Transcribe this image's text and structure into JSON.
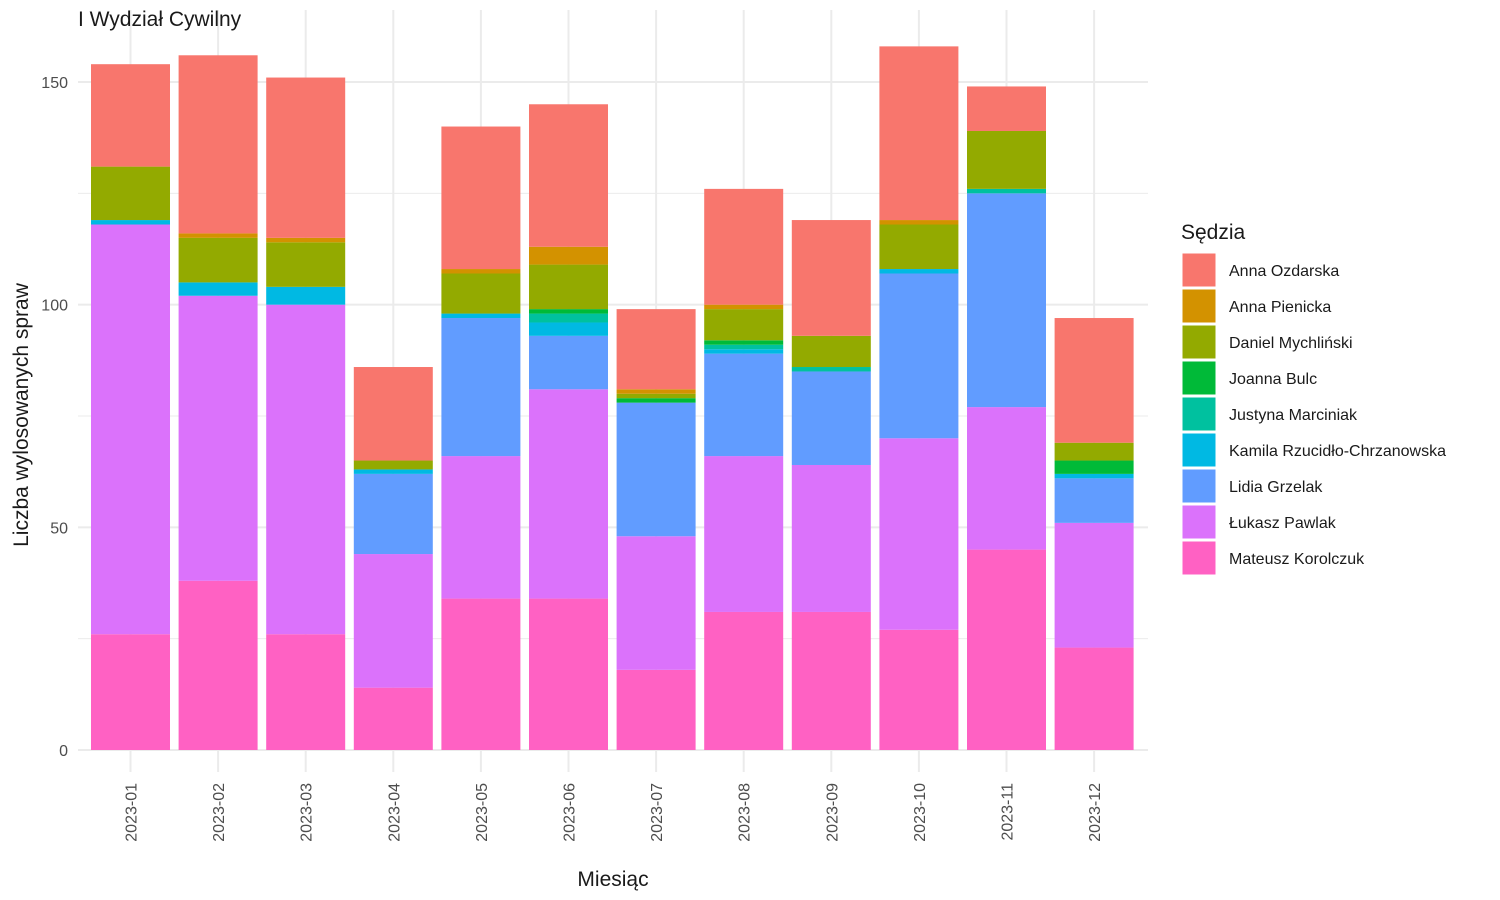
{
  "chart_data": {
    "type": "bar",
    "stacked": true,
    "title": "I Wydział Cywilny",
    "xlabel": "Miesiąc",
    "ylabel": "Liczba wylosowanych spraw",
    "ylim": [
      0,
      160
    ],
    "yticks": [
      0,
      50,
      100,
      150
    ],
    "grid": true,
    "legend": {
      "title": "Sędzia",
      "position": "right"
    },
    "categories": [
      "2023-01",
      "2023-02",
      "2023-03",
      "2023-04",
      "2023-05",
      "2023-06",
      "2023-07",
      "2023-08",
      "2023-09",
      "2023-10",
      "2023-11",
      "2023-12"
    ],
    "series": [
      {
        "name": "Mateusz Korolczuk",
        "color": "#FF61C3",
        "values": [
          26,
          38,
          26,
          14,
          34,
          34,
          18,
          31,
          31,
          27,
          45,
          23
        ]
      },
      {
        "name": "Łukasz Pawlak",
        "color": "#DB72FB",
        "values": [
          92,
          64,
          74,
          30,
          32,
          47,
          30,
          35,
          33,
          43,
          32,
          28
        ]
      },
      {
        "name": "Lidia Grzelak",
        "color": "#619CFF",
        "values": [
          0,
          0,
          0,
          18,
          31,
          12,
          30,
          23,
          21,
          37,
          48,
          10
        ]
      },
      {
        "name": "Kamila Rzucidło-Chrzanowska",
        "color": "#00B9E3",
        "values": [
          1,
          3,
          4,
          1,
          1,
          3,
          0,
          1,
          0,
          1,
          0,
          1
        ]
      },
      {
        "name": "Justyna Marciniak",
        "color": "#00C19F",
        "values": [
          0,
          0,
          0,
          0,
          0,
          2,
          0,
          1,
          1,
          0,
          1,
          0
        ]
      },
      {
        "name": "Joanna Bulc",
        "color": "#00BA38",
        "values": [
          0,
          0,
          0,
          0,
          0,
          1,
          1,
          1,
          0,
          0,
          0,
          3
        ]
      },
      {
        "name": "Daniel Mychliński",
        "color": "#93AA00",
        "values": [
          12,
          10,
          10,
          2,
          9,
          10,
          1,
          7,
          7,
          10,
          13,
          4
        ]
      },
      {
        "name": "Anna Pienicka",
        "color": "#D39200",
        "values": [
          0,
          1,
          1,
          0,
          1,
          4,
          1,
          1,
          0,
          1,
          0,
          0
        ]
      },
      {
        "name": "Anna Ozdarska",
        "color": "#F8766D",
        "values": [
          23,
          40,
          36,
          21,
          32,
          32,
          18,
          26,
          26,
          39,
          10,
          28
        ]
      }
    ],
    "legend_order": [
      "Anna Ozdarska",
      "Anna Pienicka",
      "Daniel Mychliński",
      "Joanna Bulc",
      "Justyna Marciniak",
      "Kamila Rzucidło-Chrzanowska",
      "Lidia Grzelak",
      "Łukasz Pawlak",
      "Mateusz Korolczuk"
    ]
  }
}
